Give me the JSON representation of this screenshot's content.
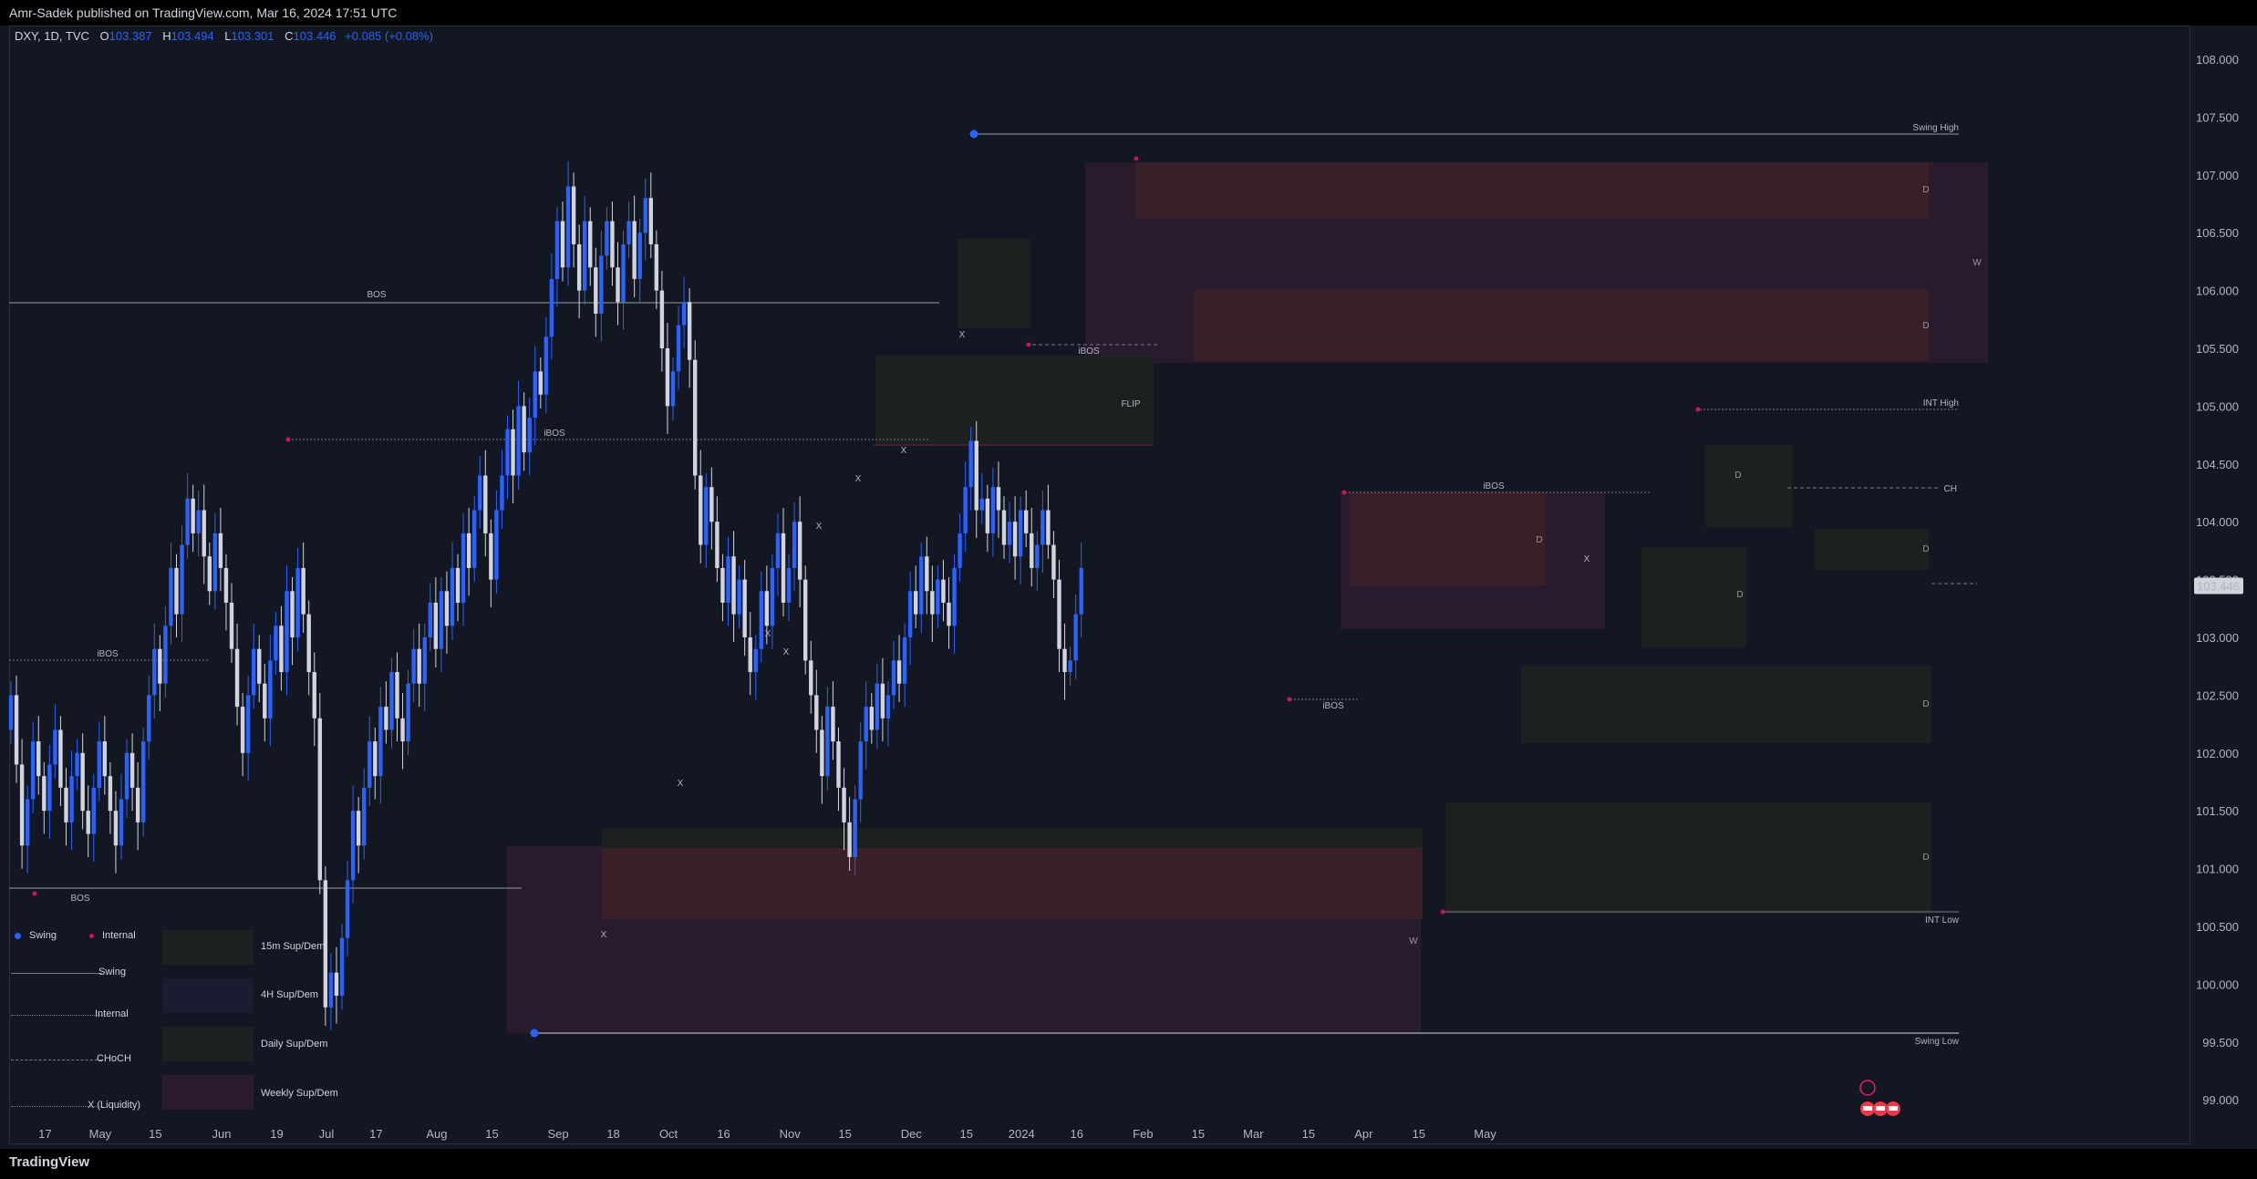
{
  "header": {
    "published": "Amr-Sadek published on TradingView.com, Mar 16, 2024 17:51 UTC"
  },
  "symbol": {
    "title": "DXY, 1D, TVC",
    "o_label": "O",
    "o": "103.387",
    "h_label": "H",
    "h": "103.494",
    "l_label": "L",
    "l": "103.301",
    "c_label": "C",
    "c": "103.446",
    "change": "+0.085 (+0.08%)"
  },
  "footer": {
    "brand": "TradingView"
  },
  "legend": {
    "swing_dot": "Swing",
    "internal_dot": "Internal",
    "swing_line": "Swing",
    "internal_line": "Internal",
    "choch_line": "CHoCH",
    "liquidity_line": "X (Liquidity)",
    "box_15m": "15m Sup/Dem",
    "box_4h": "4H Sup/Dem",
    "box_daily": "Daily Sup/Dem",
    "box_weekly": "Weekly Sup/Dem"
  },
  "colors": {
    "background": "#131722",
    "bull_candle": "#2962ff",
    "bear_candle": "#d1d4dc",
    "supply_zone": "#3a2028",
    "weekly_zone": "#2a1b2f",
    "demand_zone": "#1c2120",
    "swing_dot": "#2962ff",
    "internal_dot": "#c2185b"
  },
  "chart_data": {
    "type": "candlestick",
    "symbol": "DXY",
    "timeframe": "1D",
    "ylim": [
      98.8,
      108.3
    ],
    "y_ticks": [
      "108.000",
      "107.500",
      "107.000",
      "106.500",
      "106.000",
      "105.500",
      "105.000",
      "104.500",
      "104.000",
      "103.500",
      "103.000",
      "102.500",
      "102.000",
      "101.500",
      "101.000",
      "100.500",
      "100.000",
      "99.500",
      "99.000"
    ],
    "last_price": "103.446",
    "x_ticks": [
      {
        "label": "17",
        "x": 0.4
      },
      {
        "label": "May",
        "x": 10.4
      },
      {
        "label": "15",
        "x": 20.4
      },
      {
        "label": "Jun",
        "x": 32.4
      },
      {
        "label": "19",
        "x": 42.4
      },
      {
        "label": "Jul",
        "x": 51.4
      },
      {
        "label": "17",
        "x": 60.4
      },
      {
        "label": "Aug",
        "x": 71.4
      },
      {
        "label": "15",
        "x": 81.4
      },
      {
        "label": "Sep",
        "x": 93.4
      },
      {
        "label": "18",
        "x": 103.4
      },
      {
        "label": "Oct",
        "x": 113.4
      },
      {
        "label": "16",
        "x": 123.4
      },
      {
        "label": "Nov",
        "x": 135.4
      },
      {
        "label": "15",
        "x": 145.4
      },
      {
        "label": "Dec",
        "x": 157.4
      },
      {
        "label": "15",
        "x": 167.4
      },
      {
        "label": "2024",
        "x": 177.4
      },
      {
        "label": "16",
        "x": 187.4
      },
      {
        "label": "Feb",
        "x": 199.4
      },
      {
        "label": "15",
        "x": 209.4
      },
      {
        "label": "Mar",
        "x": 219.4
      },
      {
        "label": "15",
        "x": 229.4
      },
      {
        "label": "Apr",
        "x": 239.4
      },
      {
        "label": "15",
        "x": 249.4
      },
      {
        "label": "May",
        "x": 261.4
      }
    ],
    "closes": [
      102.5,
      101.9,
      101.2,
      101.6,
      102.1,
      101.8,
      101.5,
      101.9,
      102.2,
      101.7,
      101.4,
      101.8,
      102.0,
      101.5,
      101.3,
      101.7,
      102.1,
      101.8,
      101.5,
      101.2,
      101.6,
      102.0,
      101.7,
      101.4,
      102.1,
      102.5,
      102.9,
      102.6,
      103.1,
      103.6,
      103.2,
      103.8,
      104.2,
      103.9,
      104.1,
      103.7,
      103.4,
      103.9,
      103.6,
      103.3,
      102.9,
      102.4,
      102.0,
      102.5,
      102.9,
      102.6,
      102.3,
      102.8,
      103.1,
      102.7,
      103.4,
      103.0,
      103.6,
      103.2,
      102.7,
      102.3,
      100.9,
      99.8,
      100.1,
      99.9,
      100.4,
      100.9,
      101.5,
      101.2,
      101.7,
      102.1,
      101.8,
      102.4,
      102.2,
      102.7,
      102.3,
      102.1,
      102.6,
      102.9,
      102.6,
      103.0,
      103.3,
      102.9,
      103.4,
      103.1,
      103.6,
      103.3,
      103.9,
      103.6,
      104.1,
      104.4,
      103.9,
      103.5,
      104.1,
      104.4,
      104.8,
      104.4,
      105.0,
      104.6,
      104.9,
      105.3,
      105.1,
      105.6,
      106.1,
      106.6,
      106.2,
      106.9,
      106.4,
      106.0,
      106.6,
      106.2,
      105.8,
      106.3,
      106.6,
      106.2,
      105.9,
      106.4,
      106.6,
      106.1,
      106.5,
      106.8,
      106.4,
      106.0,
      105.5,
      105.0,
      105.3,
      105.7,
      105.9,
      105.4,
      104.4,
      103.8,
      104.3,
      104.0,
      103.6,
      103.3,
      103.7,
      103.2,
      103.5,
      103.0,
      102.7,
      102.9,
      103.4,
      103.1,
      103.6,
      103.9,
      103.3,
      103.6,
      104.0,
      103.5,
      102.8,
      102.5,
      102.2,
      101.8,
      102.4,
      102.1,
      101.7,
      101.4,
      101.1,
      101.6,
      102.1,
      102.4,
      102.2,
      102.6,
      102.3,
      102.5,
      102.8,
      102.6,
      103.0,
      103.4,
      103.2,
      103.7,
      103.4,
      103.2,
      103.5,
      103.3,
      103.1,
      103.6,
      103.9,
      104.3,
      104.7,
      104.1,
      104.2,
      103.9,
      104.3,
      104.1,
      103.8,
      104.0,
      103.7,
      104.1,
      103.9,
      103.6,
      103.8,
      104.1,
      103.8,
      103.5,
      102.9,
      102.7,
      102.8,
      103.2,
      103.6
    ],
    "structure_labels": [
      "BOS",
      "iBOS",
      "BOS",
      "iBOS",
      "BOS",
      "iBOS",
      "iBOS",
      "iBOS",
      "Swing High",
      "INT High",
      "CH",
      "INT Low",
      "Swing Low",
      "D",
      "W",
      "FLIP",
      "X"
    ]
  }
}
